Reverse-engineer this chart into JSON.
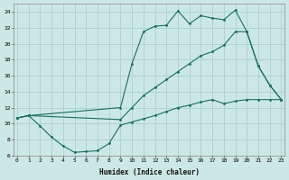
{
  "xlabel": "Humidex (Indice chaleur)",
  "bg_color": "#cce8e4",
  "grid_color": "#aacfcb",
  "line_color": "#1a6e62",
  "line1_x": [
    0,
    1,
    2,
    3,
    4,
    5,
    6,
    7,
    8,
    9,
    10,
    11,
    12,
    13,
    14,
    15,
    16,
    17,
    18,
    19,
    20,
    21,
    22,
    23
  ],
  "line1_y": [
    10.7,
    11.0,
    9.7,
    8.3,
    7.2,
    6.4,
    6.5,
    6.6,
    7.5,
    9.8,
    10.2,
    10.6,
    11.0,
    11.5,
    12.0,
    12.3,
    12.7,
    13.0,
    12.5,
    12.8,
    13.0,
    13.0,
    13.0,
    13.0
  ],
  "line2_x": [
    0,
    1,
    9,
    10,
    11,
    12,
    13,
    14,
    15,
    16,
    17,
    18,
    19,
    20,
    21,
    22,
    23
  ],
  "line2_y": [
    10.7,
    11.0,
    12.0,
    17.5,
    21.5,
    22.2,
    22.3,
    24.1,
    22.5,
    23.5,
    23.2,
    23.0,
    24.2,
    21.5,
    17.2,
    14.8,
    13.0
  ],
  "line3_x": [
    0,
    1,
    9,
    10,
    11,
    12,
    13,
    14,
    15,
    16,
    17,
    18,
    19,
    20,
    21,
    22,
    23
  ],
  "line3_y": [
    10.7,
    11.0,
    10.5,
    12.0,
    13.5,
    14.5,
    15.5,
    16.5,
    17.5,
    18.5,
    19.0,
    19.8,
    21.5,
    21.5,
    17.2,
    14.8,
    13.0
  ],
  "xlim": [
    0,
    23
  ],
  "ylim": [
    6,
    25
  ],
  "yticks": [
    6,
    8,
    10,
    12,
    14,
    16,
    18,
    20,
    22,
    24
  ],
  "xticks": [
    0,
    1,
    2,
    3,
    4,
    5,
    6,
    7,
    8,
    9,
    10,
    11,
    12,
    13,
    14,
    15,
    16,
    17,
    18,
    19,
    20,
    21,
    22,
    23
  ],
  "xlabel_fontsize": 5.5,
  "tick_fontsize": 4.5
}
